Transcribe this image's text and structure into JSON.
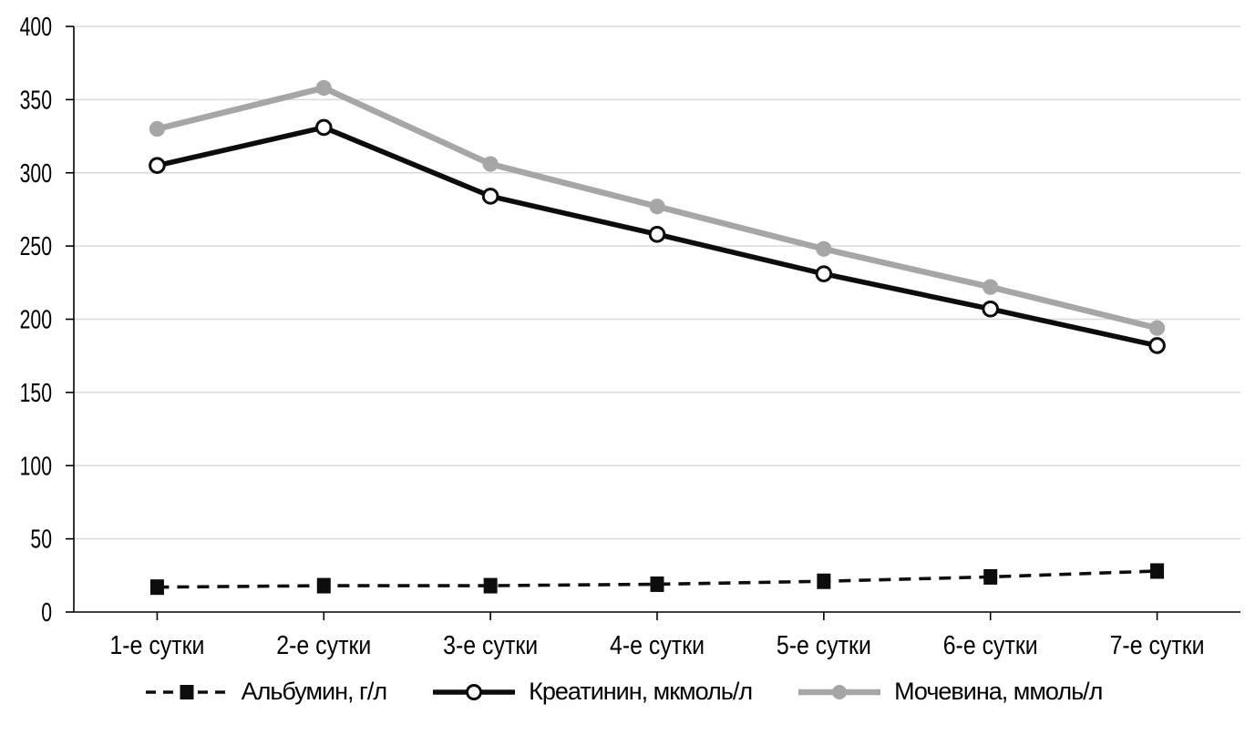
{
  "chart_data": {
    "type": "line",
    "title": "",
    "xlabel": "",
    "ylabel": "",
    "categories": [
      "1-е сутки",
      "2-е сутки",
      "3-е сутки",
      "4-е сутки",
      "5-е сутки",
      "6-е сутки",
      "7-е сутки"
    ],
    "series": [
      {
        "key": "albumin",
        "name": "Альбумин, г/л",
        "values": [
          17,
          18,
          18,
          19,
          21,
          24,
          28
        ],
        "color": "#0d0d0d",
        "line_style": "dashed",
        "marker": "filled-square"
      },
      {
        "key": "creatinine",
        "name": "Креатинин, мкмоль/л",
        "values": [
          305,
          331,
          284,
          258,
          231,
          207,
          182
        ],
        "color": "#0d0d0d",
        "line_style": "solid",
        "marker": "open-circle"
      },
      {
        "key": "urea",
        "name": "Мочевина, ммоль/л",
        "values": [
          330,
          358,
          306,
          277,
          248,
          222,
          194
        ],
        "color": "#a6a6a6",
        "line_style": "solid",
        "marker": "filled-circle"
      }
    ],
    "ylim": [
      0,
      400
    ],
    "yticks": [
      0,
      50,
      100,
      150,
      200,
      250,
      300,
      350,
      400
    ],
    "grid": "horizontal-only",
    "legend_position": "bottom-center",
    "colors": {
      "axis": "#000000",
      "gridline": "#d9d9d9",
      "background": "#ffffff",
      "open_marker_fill": "#ffffff"
    }
  }
}
